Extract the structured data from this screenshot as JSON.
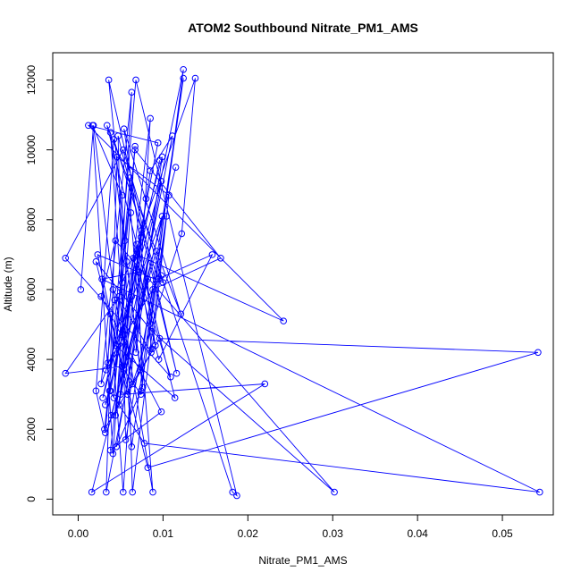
{
  "chart_data": {
    "type": "line",
    "title": "ATOM2 Southbound Nitrate_PM1_AMS",
    "xlabel": "Nitrate_PM1_AMS",
    "ylabel": "Altitude (m)",
    "xlim": [
      -0.003,
      0.056
    ],
    "ylim": [
      -450,
      12780
    ],
    "x_ticks": [
      "0.00",
      "0.01",
      "0.02",
      "0.03",
      "0.04",
      "0.05"
    ],
    "y_ticks": [
      "0",
      "2000",
      "4000",
      "6000",
      "8000",
      "10000",
      "12000"
    ],
    "x_tick_values": [
      0.0,
      0.01,
      0.02,
      0.03,
      0.04,
      0.05
    ],
    "y_tick_values": [
      0,
      2000,
      4000,
      6000,
      8000,
      10000,
      12000
    ],
    "grid": false,
    "marker": "open-circle",
    "line_color": "#0000ff",
    "series": [
      {
        "x": [
          0.0003,
          0.0018,
          0.0043,
          0.0033,
          0.0054,
          0.0074,
          0.0052,
          0.0067,
          0.0041,
          0.0017,
          0.0052,
          0.0052,
          0.0096,
          0.0038,
          0.0032,
          0.0063,
          0.0085,
          0.0111,
          0.0048,
          0.0069,
          0.0044,
          0.0099,
          0.0027,
          0.0063,
          0.0042,
          0.0057,
          0.0073,
          0.0124,
          0.0063,
          0.0038,
          0.0076,
          0.0069,
          0.0087,
          0.0107,
          0.0046,
          0.0033,
          0.0082,
          0.0086,
          0.0041,
          0.0064,
          0.0122,
          0.0138,
          0.0075,
          0.0053,
          0.0038,
          0.0035,
          0.0098,
          0.0182,
          0.0187,
          0.0068,
          0.0032,
          0.0021,
          0.0042,
          0.0094,
          0.0158,
          0.0095,
          0.0065,
          0.0029,
          0.0098,
          0.0045,
          0.0074,
          0.0104,
          0.0064,
          0.0055,
          0.0036,
          0.0116,
          0.0047,
          0.0056,
          0.0088,
          0.0168,
          0.0067,
          0.0031,
          0.0096,
          0.0542,
          0.0082,
          0.0021,
          0.0087,
          0.0302,
          0.0044,
          0.0027,
          0.0098,
          0.0038,
          0.0085,
          0.0068,
          0.0099,
          0.0069,
          0.0242,
          0.0012,
          0.0094,
          0.0037,
          0.0078,
          0.0544,
          0.0028,
          0.0071,
          0.0109,
          -0.0015,
          0.0053,
          0.01,
          0.0023,
          0.0058,
          0.0091,
          0.0054,
          0.0121,
          0.0034,
          0.0114,
          0.0044,
          0.0061,
          0.0062,
          0.0088,
          0.0048,
          -0.0015,
          0.0052,
          0.0124,
          0.0074,
          0.0054,
          0.008,
          0.005,
          0.022,
          0.0016,
          0.0115,
          0.0039,
          0.0092
        ],
        "y": [
          6000,
          10700,
          5700,
          3700,
          4500,
          7500,
          6200,
          10100,
          1300,
          10700,
          8700,
          4700,
          9700,
          3100,
          2700,
          5800,
          9400,
          10400,
          2700,
          7300,
          2400,
          8100,
          3300,
          11650,
          2900,
          6800,
          3700,
          12050,
          1500,
          10500,
          3200,
          7100,
          4300,
          8700,
          9800,
          200,
          6300,
          4200,
          6000,
          3300,
          7600,
          12050,
          7700,
          200,
          5300,
          3900,
          6400,
          200,
          100,
          12000,
          1900,
          3100,
          10300,
          6300,
          7000,
          4000,
          6900,
          2900,
          9100,
          1500,
          3100,
          8100,
          200,
          7400,
          12000,
          3600,
          10400,
          1700,
          6000,
          6900,
          10000,
          2000,
          4600,
          4200,
          900,
          6800,
          4800,
          200,
          7400,
          5800,
          2500,
          1400,
          10900,
          4200,
          9800,
          7000,
          5100,
          10700,
          10200,
          3100,
          1600,
          200,
          6300,
          6500,
          3500,
          6900,
          10000,
          6200,
          7000,
          3000,
          4400,
          10600,
          5300,
          10700,
          2900,
          4400,
          9200,
          8200,
          200,
          5800,
          3600,
          3800,
          12300,
          3000,
          3700,
          8600,
          3000,
          3300,
          200,
          9500,
          2400,
          7100
        ]
      }
    ]
  }
}
